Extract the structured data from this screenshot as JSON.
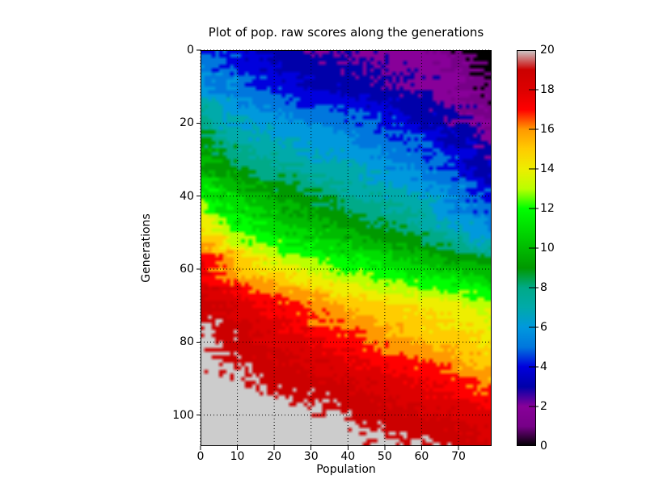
{
  "chart_data": {
    "type": "heatmap",
    "title": "Plot of pop. raw scores along the generations",
    "xlabel": "Population",
    "ylabel": "Generations",
    "x_range": [
      0,
      79
    ],
    "y_range": [
      0,
      109
    ],
    "y_inverted": true,
    "x_ticks": [
      0,
      10,
      20,
      30,
      40,
      50,
      60,
      70
    ],
    "y_ticks": [
      0,
      20,
      40,
      60,
      80,
      100
    ],
    "grid": "dotted",
    "grid_color": "#000000",
    "background_color": "#ffffff",
    "value_range": [
      0,
      20
    ],
    "colormap": {
      "name": "nipy_spectral",
      "stops": [
        [
          0.0,
          "#000000"
        ],
        [
          0.05,
          "#770088"
        ],
        [
          0.1,
          "#880099"
        ],
        [
          0.15,
          "#0000aa"
        ],
        [
          0.2,
          "#0000dd"
        ],
        [
          0.25,
          "#0077dd"
        ],
        [
          0.3,
          "#0099dd"
        ],
        [
          0.35,
          "#00aaaa"
        ],
        [
          0.4,
          "#00aa88"
        ],
        [
          0.45,
          "#009900"
        ],
        [
          0.5,
          "#00bb00"
        ],
        [
          0.55,
          "#00dd00"
        ],
        [
          0.6,
          "#00ff00"
        ],
        [
          0.65,
          "#bbff00"
        ],
        [
          0.7,
          "#eeee00"
        ],
        [
          0.75,
          "#ffcc00"
        ],
        [
          0.8,
          "#ff9900"
        ],
        [
          0.85,
          "#ff0000"
        ],
        [
          0.9,
          "#dd0000"
        ],
        [
          0.95,
          "#cc0000"
        ],
        [
          1.0,
          "#cccccc"
        ]
      ]
    },
    "colorbar": {
      "min": 0,
      "max": 20,
      "ticks": [
        0,
        2,
        4,
        6,
        8,
        10,
        12,
        14,
        16,
        18,
        20
      ]
    },
    "value_grid": {
      "description": "Raw score v(generation, population); integer scores 0-20, best (20, light gray) at bottom-left, worst (0, black) at top-right. Bilinearly interpolated between samples; band edges are ragged/noisy.",
      "g_samples": [
        0,
        10,
        20,
        30,
        40,
        50,
        60,
        70,
        80,
        90,
        100,
        108
      ],
      "p_samples": [
        0,
        10,
        20,
        30,
        40,
        50,
        60,
        70,
        80
      ],
      "values": [
        [
          4.4,
          4.0,
          3.2,
          2.7,
          2.4,
          2.2,
          2.0,
          1.0,
          -1.0
        ],
        [
          6.5,
          4.8,
          4.0,
          3.4,
          3.0,
          2.7,
          2.4,
          1.8,
          0.2
        ],
        [
          8.0,
          6.5,
          6.0,
          5.5,
          5.0,
          4.4,
          3.6,
          2.6,
          1.2
        ],
        [
          10.0,
          8.2,
          7.5,
          6.9,
          6.3,
          5.7,
          5.0,
          3.9,
          2.6
        ],
        [
          12.0,
          10.2,
          9.3,
          8.5,
          7.7,
          7.0,
          6.3,
          5.2,
          3.8
        ],
        [
          14.5,
          12.3,
          11.2,
          10.3,
          9.5,
          8.7,
          8.0,
          6.8,
          5.4
        ],
        [
          18.0,
          15.4,
          14.2,
          13.2,
          12.3,
          11.5,
          10.8,
          10.2,
          9.2
        ],
        [
          19.0,
          18.0,
          17.0,
          16.1,
          15.3,
          14.7,
          14.2,
          13.7,
          12.8
        ],
        [
          19.9,
          18.9,
          18.3,
          17.7,
          16.9,
          16.1,
          15.4,
          14.9,
          14.2
        ],
        [
          20.2,
          19.7,
          19.1,
          18.7,
          18.4,
          18.0,
          17.4,
          16.6,
          15.6
        ],
        [
          20.4,
          20.2,
          20.0,
          19.9,
          19.4,
          18.9,
          18.6,
          18.3,
          17.8
        ],
        [
          20.5,
          20.4,
          20.3,
          20.1,
          19.9,
          19.7,
          19.45,
          19.0,
          18.5
        ]
      ]
    },
    "noise": {
      "coord_jitter": 9,
      "fine_jitter": 3,
      "value_jitter": 0.7
    }
  }
}
